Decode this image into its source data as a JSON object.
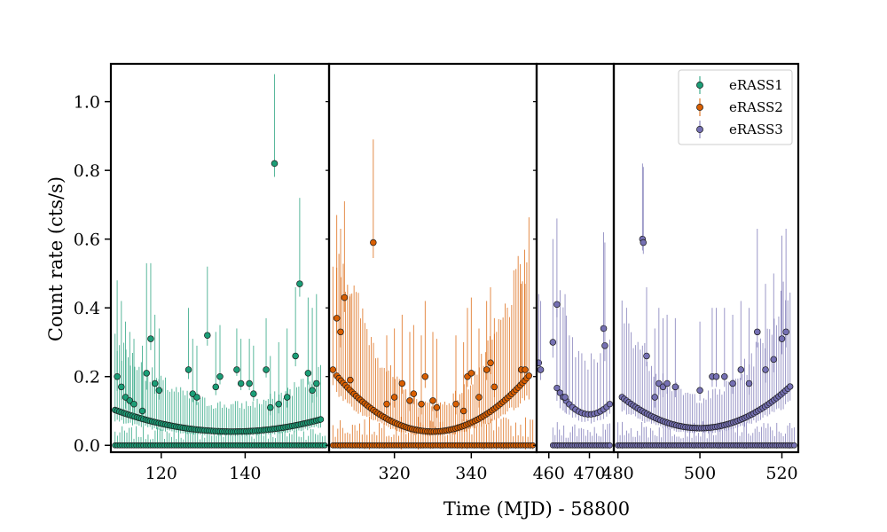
{
  "chart_data": {
    "type": "scatter",
    "xlabel": "Time (MJD) - 58800",
    "ylabel": "Count rate (cts/s)",
    "ylim": [
      -0.02,
      1.11
    ],
    "yticks": [
      0.0,
      0.2,
      0.4,
      0.6,
      0.8,
      1.0
    ],
    "ytick_labels": [
      "0.0",
      "0.2",
      "0.4",
      "0.6",
      "0.8",
      "1.0"
    ],
    "legend_position": "top-right",
    "panels": [
      {
        "name": "eRASS1",
        "xlim": [
          108,
          160
        ],
        "xticks": [
          120,
          140
        ],
        "xtick_labels": [
          "120",
          "140"
        ]
      },
      {
        "name": "eRASS2",
        "xlim": [
          303,
          357
        ],
        "xticks": [
          320,
          340
        ],
        "xtick_labels": [
          "320",
          "340"
        ]
      },
      {
        "name": "eRASS3-a",
        "xlim": [
          457,
          476
        ],
        "xticks": [
          460,
          470
        ],
        "xtick_labels": [
          "460",
          "470"
        ]
      },
      {
        "name": "eRASS3-b",
        "xlim": [
          479,
          524
        ],
        "xticks": [
          480,
          500,
          520
        ],
        "xtick_labels": [
          "480",
          "500",
          "520"
        ]
      }
    ],
    "series": [
      {
        "name": "eRASS1",
        "color": "#1b9e77",
        "x": [
          109.5,
          110.5,
          111.5,
          112.5,
          113.5,
          115.5,
          116.5,
          117.5,
          118.5,
          119.5,
          126.5,
          127.5,
          128.5,
          131.0,
          133.0,
          134.0,
          138.0,
          139.0,
          141.0,
          142.0,
          145.0,
          146.0,
          147.0,
          148.0,
          150.0,
          152.0,
          153.0,
          155.0,
          156.0,
          157.0
        ],
        "y": [
          0.2,
          0.17,
          0.14,
          0.13,
          0.12,
          0.1,
          0.21,
          0.31,
          0.18,
          0.16,
          0.22,
          0.15,
          0.14,
          0.32,
          0.17,
          0.2,
          0.22,
          0.18,
          0.18,
          0.15,
          0.22,
          0.11,
          0.82,
          0.12,
          0.14,
          0.26,
          0.47,
          0.21,
          0.16,
          0.18
        ],
        "err": [
          0.28,
          0.25,
          0.22,
          0.2,
          0.19,
          0.19,
          0.32,
          0.22,
          0.2,
          0.18,
          0.18,
          0.16,
          0.15,
          0.2,
          0.16,
          0.15,
          0.12,
          0.13,
          0.13,
          0.14,
          0.15,
          0.15,
          0.26,
          0.18,
          0.2,
          0.2,
          0.25,
          0.22,
          0.24,
          0.26
        ],
        "baseline_count": 90,
        "baseline_err": 0.04,
        "curve": {
          "x0": 109.0,
          "x1": 158.0,
          "xmin": 137.0,
          "ymin": 0.04,
          "a": 8e-05,
          "count": 95,
          "err_factor": 1.9
        }
      },
      {
        "name": "eRASS2",
        "color": "#d95f02",
        "x": [
          304.0,
          305.0,
          306.0,
          307.0,
          308.5,
          314.5,
          318.0,
          320.0,
          322.0,
          324.0,
          325.0,
          327.0,
          328.0,
          330.0,
          331.0,
          336.0,
          338.0,
          339.0,
          340.0,
          342.0,
          344.0,
          345.0,
          346.0,
          353.0,
          354.0
        ],
        "y": [
          0.22,
          0.37,
          0.33,
          0.43,
          0.19,
          0.59,
          0.12,
          0.14,
          0.18,
          0.13,
          0.15,
          0.12,
          0.2,
          0.13,
          0.11,
          0.12,
          0.1,
          0.2,
          0.21,
          0.14,
          0.22,
          0.24,
          0.17,
          0.22,
          0.22
        ],
        "err": [
          0.3,
          0.3,
          0.3,
          0.28,
          0.25,
          0.3,
          0.2,
          0.2,
          0.2,
          0.2,
          0.2,
          0.2,
          0.22,
          0.2,
          0.2,
          0.2,
          0.2,
          0.2,
          0.22,
          0.2,
          0.2,
          0.22,
          0.2,
          0.25,
          0.25
        ],
        "baseline_count": 80,
        "baseline_err": 0.06,
        "curve": {
          "x0": 305.0,
          "x1": 355.0,
          "xmin": 330.0,
          "ymin": 0.04,
          "a": 0.00026,
          "count": 90,
          "err_factor": 1.9
        }
      },
      {
        "name": "eRASS3",
        "color": "#7570b3",
        "x": [
          457.5,
          458.0,
          461.0,
          462.0,
          464.0,
          473.5,
          473.8,
          486.0,
          486.2,
          487.0,
          489.0,
          490.0,
          491.0,
          492.0,
          494.0,
          500.0,
          503.0,
          504.0,
          506.0,
          508.0,
          510.0,
          512.0,
          514.0,
          516.0,
          518.0,
          520.0,
          521.0
        ],
        "y": [
          0.24,
          0.22,
          0.3,
          0.41,
          0.14,
          0.34,
          0.29,
          0.6,
          0.59,
          0.26,
          0.14,
          0.18,
          0.17,
          0.18,
          0.17,
          0.16,
          0.2,
          0.2,
          0.2,
          0.18,
          0.22,
          0.18,
          0.33,
          0.22,
          0.25,
          0.31,
          0.33
        ],
        "err": [
          0.2,
          0.2,
          0.3,
          0.25,
          0.3,
          0.28,
          0.3,
          0.22,
          0.22,
          0.2,
          0.2,
          0.22,
          0.2,
          0.2,
          0.2,
          0.2,
          0.2,
          0.2,
          0.2,
          0.2,
          0.2,
          0.22,
          0.3,
          0.25,
          0.25,
          0.3,
          0.3
        ],
        "baseline_count": 95,
        "baseline_err": 0.05,
        "curve": {
          "x0": 481.0,
          "x1": 522.0,
          "xmin": 500.0,
          "ymin": 0.05,
          "a": 0.00025,
          "count": 75,
          "err_factor": 1.8
        },
        "curve_b": {
          "x0": 462.0,
          "x1": 475.0,
          "xmin": 470.0,
          "ymin": 0.09,
          "a": 0.0012,
          "count": 18,
          "err_factor": 1.8
        }
      }
    ]
  },
  "legend": {
    "entries": [
      "eRASS1",
      "eRASS2",
      "eRASS3"
    ]
  }
}
